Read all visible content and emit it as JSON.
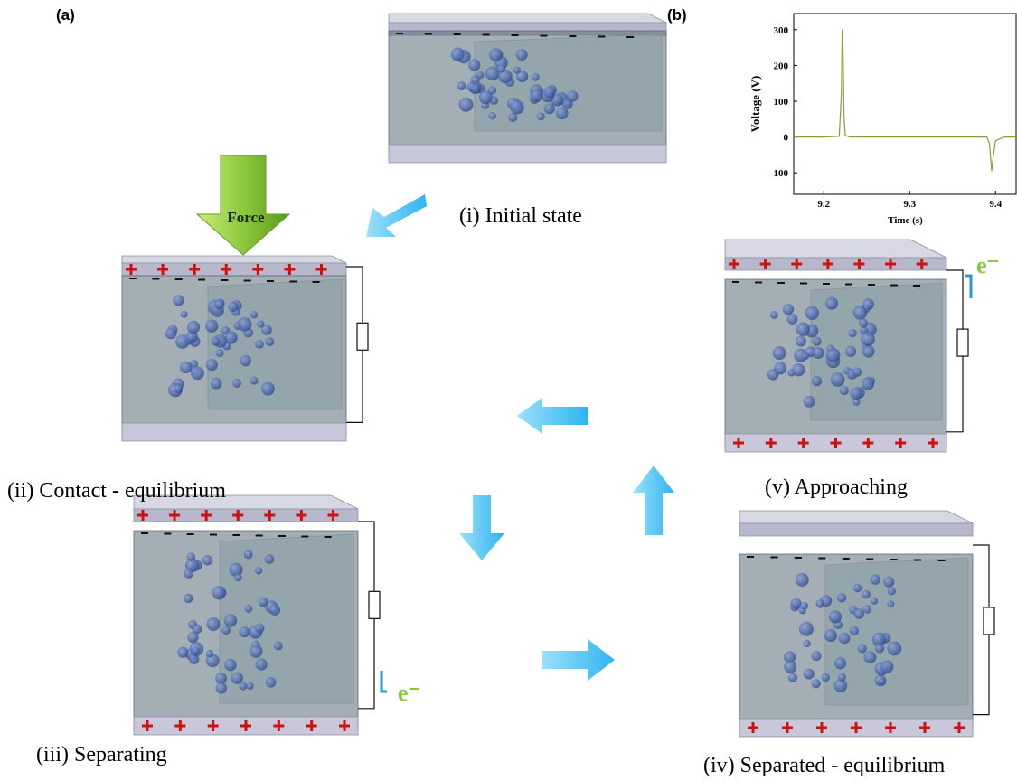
{
  "panel_a": {
    "label": "(a)",
    "force": "Force",
    "stages": [
      "(i) Initial state",
      "(ii) Contact - equilibrium",
      "(iii) Separating",
      "(iv) Separated - equilibrium",
      "(v) Approaching"
    ],
    "electron": "e⁻"
  },
  "panel_b": {
    "label": "(b)"
  },
  "chart_data": {
    "type": "line",
    "x_label": "Time (s)",
    "y_label": "Voltage (V)",
    "x": [
      9.165,
      9.2,
      9.218,
      9.2205,
      9.2215,
      9.2225,
      9.2235,
      9.225,
      9.23,
      9.3,
      9.39,
      9.393,
      9.3955,
      9.397,
      9.4,
      9.41,
      9.425
    ],
    "values": [
      0,
      0,
      2,
      120,
      300,
      240,
      60,
      5,
      0,
      0,
      0,
      -20,
      -95,
      -60,
      -10,
      0,
      0
    ],
    "color": "#8c9a3c",
    "xlim": [
      9.165,
      9.425
    ],
    "xticks": [
      9.2,
      9.3,
      9.4
    ],
    "ylim": [
      -160,
      345
    ],
    "yticks": [
      -100,
      0,
      100,
      200,
      300
    ]
  }
}
